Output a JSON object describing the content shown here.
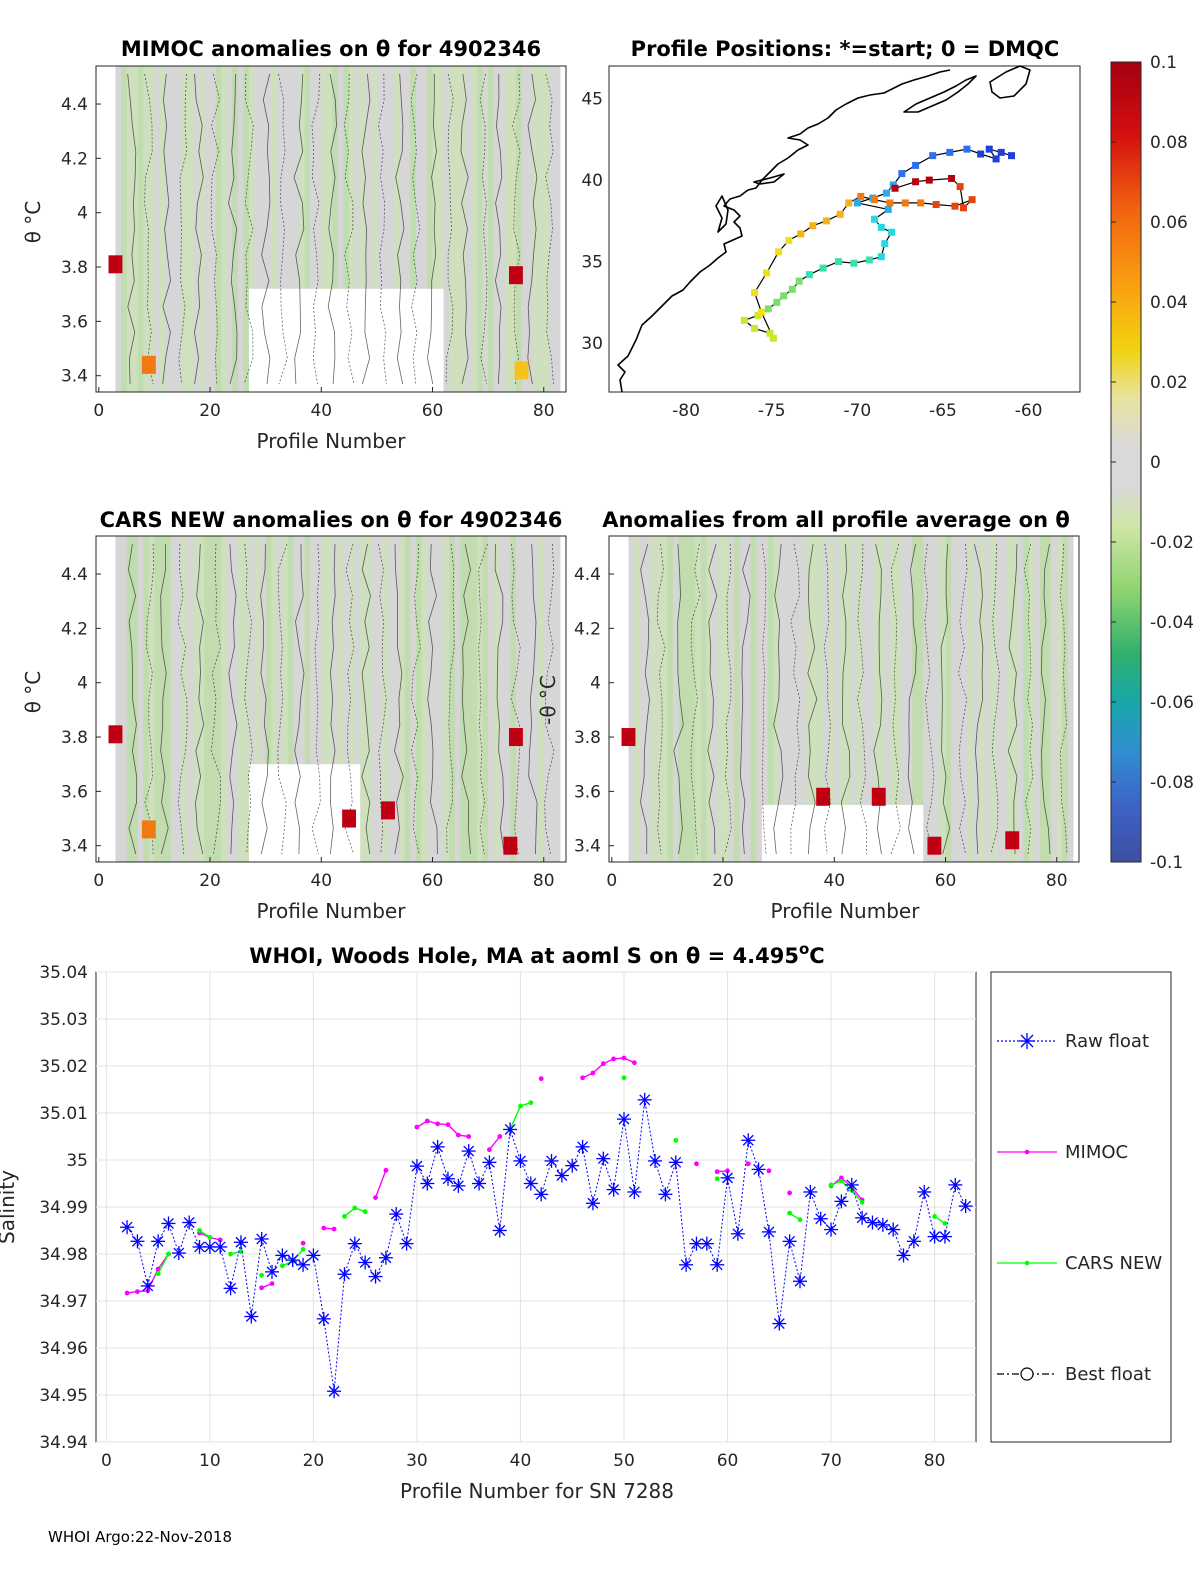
{
  "chart_data": [
    {
      "type": "heatmap",
      "title": "MIMOC anomalies on θ  for 4902346",
      "xlabel": "Profile Number",
      "ylabel": "θ °C",
      "xlim": [
        -0.5,
        84
      ],
      "ylim": [
        3.34,
        4.54
      ],
      "xticks": [
        "0",
        "20",
        "40",
        "60",
        "80"
      ],
      "yticks": [
        "3.4",
        "3.6",
        "3.8",
        "4",
        "4.2",
        "4.4"
      ],
      "hot_spots": [
        {
          "profile": 3,
          "theta": 3.81,
          "value": 0.1
        },
        {
          "profile": 9,
          "theta": 3.44,
          "value": 0.05
        },
        {
          "profile": 75,
          "theta": 3.77,
          "value": 0.1
        },
        {
          "profile": 76,
          "theta": 3.42,
          "value": 0.04
        }
      ]
    },
    {
      "type": "scatter",
      "title": "Profile Positions: *=start; 0 = DMQC",
      "xlabel": "",
      "ylabel": "",
      "xlim": [
        -84.5,
        -57
      ],
      "ylim": [
        27,
        47
      ],
      "xticks": [
        "-80",
        "-75",
        "-70",
        "-65",
        "-60"
      ],
      "yticks": [
        "30",
        "35",
        "40",
        "45"
      ],
      "points": [
        [
          -61,
          41.5
        ],
        [
          -61.6,
          41.7
        ],
        [
          -62.3,
          41.9
        ],
        [
          -61.9,
          41.3
        ],
        [
          -62.8,
          41.6
        ],
        [
          -63.6,
          41.9
        ],
        [
          -64.6,
          41.7
        ],
        [
          -65.6,
          41.5
        ],
        [
          -66.6,
          40.9
        ],
        [
          -67.4,
          40.4
        ],
        [
          -67.9,
          39.7
        ],
        [
          -68.3,
          39.2
        ],
        [
          -69.1,
          38.9
        ],
        [
          -70.0,
          38.6
        ],
        [
          -68.2,
          38.2
        ],
        [
          -69.0,
          37.6
        ],
        [
          -68.6,
          37.1
        ],
        [
          -68.0,
          36.8
        ],
        [
          -68.4,
          36.1
        ],
        [
          -68.6,
          35.3
        ],
        [
          -69.3,
          35.1
        ],
        [
          -70.2,
          34.9
        ],
        [
          -71.1,
          35.0
        ],
        [
          -72.0,
          34.6
        ],
        [
          -72.8,
          34.2
        ],
        [
          -73.4,
          33.8
        ],
        [
          -73.8,
          33.3
        ],
        [
          -74.3,
          32.9
        ],
        [
          -74.7,
          32.5
        ],
        [
          -75.2,
          32.1
        ],
        [
          -75.8,
          31.7
        ],
        [
          -76.6,
          31.4
        ],
        [
          -76.0,
          30.9
        ],
        [
          -75.1,
          30.6
        ],
        [
          -74.9,
          30.3
        ],
        [
          -75.6,
          31.9
        ],
        [
          -76.0,
          33.1
        ],
        [
          -75.3,
          34.3
        ],
        [
          -74.6,
          35.6
        ],
        [
          -74.0,
          36.3
        ],
        [
          -73.3,
          36.7
        ],
        [
          -72.6,
          37.2
        ],
        [
          -71.8,
          37.5
        ],
        [
          -71.0,
          37.9
        ],
        [
          -70.5,
          38.6
        ],
        [
          -69.8,
          39.0
        ],
        [
          -69.0,
          38.8
        ],
        [
          -68.1,
          38.6
        ],
        [
          -67.2,
          38.6
        ],
        [
          -66.3,
          38.6
        ],
        [
          -65.4,
          38.5
        ],
        [
          -64.3,
          38.4
        ],
        [
          -63.3,
          38.8
        ],
        [
          -63.8,
          38.3
        ],
        [
          -64.0,
          39.6
        ],
        [
          -64.5,
          40.1
        ],
        [
          -65.8,
          40.0
        ],
        [
          -66.6,
          39.9
        ],
        [
          -67.8,
          39.5
        ]
      ]
    },
    {
      "type": "heatmap",
      "title": "CARS NEW anomalies on θ for 4902346",
      "xlabel": "Profile Number",
      "ylabel": "θ °C",
      "xlim": [
        -0.5,
        84
      ],
      "ylim": [
        3.34,
        4.54
      ],
      "xticks": [
        "0",
        "20",
        "40",
        "60",
        "80"
      ],
      "yticks": [
        "3.4",
        "3.6",
        "3.8",
        "4",
        "4.2",
        "4.4"
      ],
      "hot_spots": [
        {
          "profile": 3,
          "theta": 3.81,
          "value": 0.1
        },
        {
          "profile": 9,
          "theta": 3.46,
          "value": 0.05
        },
        {
          "profile": 45,
          "theta": 3.5,
          "value": 0.1
        },
        {
          "profile": 52,
          "theta": 3.53,
          "value": 0.1
        },
        {
          "profile": 74,
          "theta": 3.4,
          "value": 0.1
        },
        {
          "profile": 75,
          "theta": 3.8,
          "value": 0.1
        }
      ]
    },
    {
      "type": "heatmap",
      "title": "Anomalies from all profile average on θ",
      "xlabel": "Profile Number",
      "ylabel": "-θ °C",
      "xlim": [
        -0.5,
        84
      ],
      "ylim": [
        3.34,
        4.54
      ],
      "xticks": [
        "0",
        "20",
        "40",
        "60",
        "80"
      ],
      "yticks": [
        "3.4",
        "3.6",
        "3.8",
        "4",
        "4.2",
        "4.4"
      ],
      "hot_spots": [
        {
          "profile": 3,
          "theta": 3.8,
          "value": 0.1
        },
        {
          "profile": 38,
          "theta": 3.58,
          "value": 0.1
        },
        {
          "profile": 48,
          "theta": 3.58,
          "value": 0.1
        },
        {
          "profile": 58,
          "theta": 3.4,
          "value": 0.1
        },
        {
          "profile": 72,
          "theta": 3.42,
          "value": 0.1
        }
      ]
    },
    {
      "type": "colorbar",
      "ticks": [
        "0.1",
        "0.08",
        "0.06",
        "0.04",
        "0.02",
        "0",
        "-0.02",
        "-0.04",
        "-0.06",
        "-0.08",
        "-0.1"
      ],
      "range": [
        -0.1,
        0.1
      ]
    },
    {
      "type": "line",
      "title": "WHOI, Woods Hole, MA at aoml S on θ = 4.495°C",
      "title_main": "WHOI, Woods Hole, MA at aoml S on θ = 4.495",
      "title_sup": "o",
      "title_tail": "C",
      "xlabel": "Profile Number for SN 7288",
      "ylabel": "Salinity",
      "xlim": [
        -1,
        84
      ],
      "ylim": [
        34.94,
        35.04
      ],
      "xticks": [
        "0",
        "10",
        "20",
        "30",
        "40",
        "50",
        "60",
        "70",
        "80"
      ],
      "yticks": [
        "34.94",
        "34.95",
        "34.96",
        "34.97",
        "34.98",
        "34.99",
        "35",
        "35.01",
        "35.02",
        "35.03",
        "35.04"
      ],
      "legend": [
        "Raw float",
        "MIMOC",
        "CARS NEW",
        "Best float"
      ],
      "legend_position": "outside-right",
      "series": [
        {
          "name": "Raw float",
          "color": "#0000ff",
          "x": [
            2,
            3,
            4,
            5,
            6,
            7,
            8,
            9,
            10,
            11,
            12,
            13,
            14,
            15,
            16,
            17,
            18,
            19,
            20,
            21,
            22,
            23,
            24,
            25,
            26,
            27,
            28,
            29,
            30,
            31,
            32,
            33,
            34,
            35,
            36,
            37,
            38,
            39,
            40,
            41,
            42,
            43,
            44,
            45,
            46,
            47,
            48,
            49,
            50,
            51,
            52,
            53,
            54,
            55,
            56,
            57,
            58,
            59,
            60,
            61,
            62,
            63,
            64,
            65,
            66,
            67,
            68,
            69,
            70,
            71,
            72,
            73,
            74,
            75,
            76,
            77,
            78,
            79,
            80,
            81,
            82,
            83
          ],
          "values": [
            34.9857,
            34.9827,
            34.9732,
            34.9827,
            34.9865,
            34.9802,
            34.9867,
            34.9815,
            34.9815,
            34.9815,
            34.9727,
            34.9825,
            34.9667,
            34.9832,
            34.9762,
            34.9797,
            34.9787,
            34.9777,
            34.9797,
            34.9662,
            34.9508,
            34.9757,
            34.9822,
            34.9782,
            34.9752,
            34.9792,
            34.9885,
            34.9822,
            34.9987,
            34.995,
            35.0028,
            34.996,
            34.9945,
            35.0019,
            34.995,
            34.9995,
            34.985,
            35.0065,
            34.9998,
            34.995,
            34.9927,
            34.9998,
            34.9967,
            34.9988,
            35.0028,
            34.9908,
            35.0003,
            34.9937,
            35.0087,
            34.9932,
            35.0128,
            34.9998,
            34.9927,
            34.9995,
            34.9777,
            34.9822,
            34.9822,
            34.9777,
            34.9962,
            34.9843,
            35.0042,
            34.998,
            34.9847,
            34.9652,
            34.9827,
            34.9742,
            34.9932,
            34.9875,
            34.9852,
            34.9912,
            34.9947,
            34.9877,
            34.9867,
            34.9862,
            34.9852,
            34.9797,
            34.9827,
            34.9932,
            34.9837,
            34.9837,
            34.9947,
            34.9902
          ]
        },
        {
          "name": "MIMOC",
          "color": "#ff00ff",
          "segments": [
            [
              [
                2,
                34.9717
              ],
              [
                3,
                34.972
              ],
              [
                4,
                34.9722
              ],
              [
                5,
                34.9768
              ],
              [
                6,
                34.98
              ]
            ],
            [
              [
                9,
                34.9845
              ],
              [
                10,
                34.9835
              ],
              [
                11,
                34.983
              ]
            ],
            [
              [
                15,
                34.9728
              ],
              [
                16,
                34.9737
              ]
            ],
            [
              [
                19,
                34.9823
              ]
            ],
            [
              [
                21,
                34.9855
              ],
              [
                22,
                34.9853
              ]
            ],
            [
              [
                26,
                34.992
              ],
              [
                27,
                34.9978
              ]
            ],
            [
              [
                30,
                35.007
              ],
              [
                31,
                35.0083
              ],
              [
                32,
                35.0077
              ],
              [
                33,
                35.0075
              ],
              [
                34,
                35.0053
              ],
              [
                35,
                35.005
              ]
            ],
            [
              [
                37,
                35.0022
              ],
              [
                38,
                35.005
              ]
            ],
            [
              [
                42,
                35.0173
              ]
            ],
            [
              [
                46,
                35.0175
              ],
              [
                47,
                35.0185
              ],
              [
                48,
                35.0205
              ],
              [
                49,
                35.0215
              ],
              [
                50,
                35.0217
              ],
              [
                51,
                35.0207
              ]
            ],
            [
              [
                57,
                34.9992
              ]
            ],
            [
              [
                59,
                34.9975
              ],
              [
                60,
                34.9977
              ]
            ],
            [
              [
                62,
                34.9992
              ]
            ],
            [
              [
                64,
                34.9977
              ]
            ],
            [
              [
                66,
                34.993
              ]
            ],
            [
              [
                70,
                34.9945
              ],
              [
                71,
                34.9962
              ],
              [
                72,
                34.9942
              ],
              [
                73,
                34.9915
              ]
            ]
          ]
        },
        {
          "name": "CARS NEW",
          "color": "#00ff00",
          "segments": [
            [
              [
                5,
                34.9758
              ],
              [
                6,
                34.98
              ]
            ],
            [
              [
                9,
                34.985
              ],
              [
                10,
                34.9835
              ]
            ],
            [
              [
                12,
                34.98
              ],
              [
                13,
                34.9805
              ]
            ],
            [
              [
                15,
                34.9755
              ]
            ],
            [
              [
                17,
                34.9775
              ],
              [
                18,
                34.9785
              ],
              [
                19,
                34.981
              ]
            ],
            [
              [
                23,
                34.988
              ],
              [
                24,
                34.9898
              ],
              [
                25,
                34.989
              ]
            ],
            [
              [
                39,
                35.0065
              ],
              [
                40,
                35.0115
              ],
              [
                41,
                35.0122
              ]
            ],
            [
              [
                50,
                35.0175
              ]
            ],
            [
              [
                55,
                35.0042
              ]
            ],
            [
              [
                59,
                34.996
              ]
            ],
            [
              [
                66,
                34.9887
              ],
              [
                67,
                34.9873
              ]
            ],
            [
              [
                70,
                34.9947
              ],
              [
                71,
                34.9955
              ],
              [
                72,
                34.9935
              ],
              [
                73,
                34.991
              ]
            ],
            [
              [
                80,
                34.988
              ],
              [
                81,
                34.9865
              ]
            ]
          ]
        }
      ]
    }
  ],
  "footer": {
    "text": "WHOI Argo:22-Nov-2018"
  }
}
